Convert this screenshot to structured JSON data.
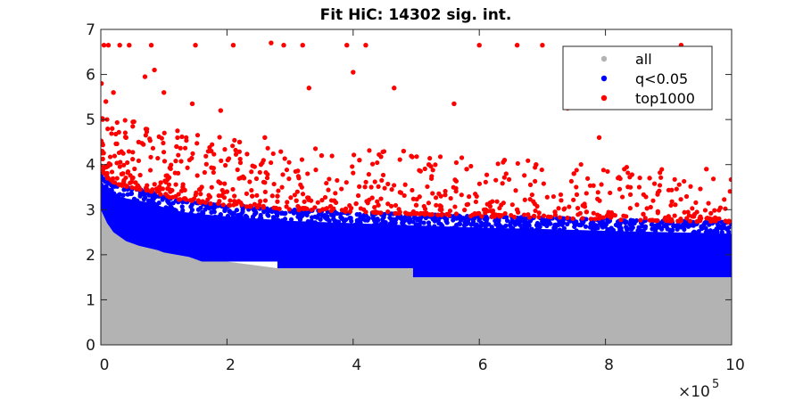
{
  "chart_data": {
    "type": "scatter",
    "title": "Fit HiC: 14302 sig. int.",
    "xlabel": "",
    "ylabel": "",
    "xlim": [
      0,
      1000000
    ],
    "ylim": [
      0,
      7
    ],
    "x_ticks": [
      0,
      200000,
      400000,
      600000,
      800000,
      1000000
    ],
    "x_tick_labels": [
      "0",
      "2",
      "4",
      "6",
      "8",
      "10"
    ],
    "x_exponent_label": "×10",
    "x_exponent_power": "5",
    "y_ticks": [
      0,
      1,
      2,
      3,
      4,
      5,
      6,
      7
    ],
    "y_tick_labels": [
      "0",
      "1",
      "2",
      "3",
      "4",
      "5",
      "6",
      "7"
    ],
    "grid": false,
    "legend_position": "top-right",
    "series": [
      {
        "name": "all",
        "color": "#b3b3b3",
        "description_points": "dense, fills the region below the significance threshold",
        "x": [
          0,
          10000,
          20000,
          40000,
          60000,
          90000,
          100000,
          140000,
          160000,
          200000,
          280000,
          300000,
          400000,
          495000,
          500000,
          600000,
          700000,
          800000,
          900000,
          1000000
        ],
        "y": [
          3.0,
          2.7,
          2.5,
          2.3,
          2.2,
          2.1,
          2.05,
          1.95,
          1.85,
          1.85,
          1.7,
          1.7,
          1.7,
          1.7,
          1.5,
          1.5,
          1.5,
          1.5,
          1.5,
          1.5
        ]
      },
      {
        "name": "q<0.05",
        "color": "#0000ff",
        "upper": [
          [
            0,
            3.9
          ],
          [
            10000,
            3.7
          ],
          [
            20000,
            3.6
          ],
          [
            40000,
            3.5
          ],
          [
            60000,
            3.45
          ],
          [
            80000,
            3.4
          ],
          [
            100000,
            3.3
          ],
          [
            130000,
            3.2
          ],
          [
            160000,
            3.15
          ],
          [
            200000,
            3.1
          ],
          [
            250000,
            3.05
          ],
          [
            300000,
            3.0
          ],
          [
            400000,
            2.95
          ],
          [
            500000,
            2.9
          ],
          [
            600000,
            2.85
          ],
          [
            700000,
            2.82
          ],
          [
            800000,
            2.78
          ],
          [
            900000,
            2.75
          ],
          [
            1000000,
            2.72
          ]
        ],
        "lower": [
          [
            0,
            3.0
          ],
          [
            10000,
            2.7
          ],
          [
            20000,
            2.5
          ],
          [
            40000,
            2.3
          ],
          [
            60000,
            2.2
          ],
          [
            90000,
            2.1
          ],
          [
            100000,
            2.05
          ],
          [
            140000,
            1.95
          ],
          [
            160000,
            1.85
          ],
          [
            280000,
            1.85
          ],
          [
            280001,
            1.7
          ],
          [
            495000,
            1.7
          ],
          [
            495001,
            1.5
          ],
          [
            1000000,
            1.5
          ]
        ]
      },
      {
        "name": "top1000",
        "color": "#ff0000",
        "x": [
          5000,
          12000,
          30000,
          45000,
          80000,
          150000,
          210000,
          270000,
          290000,
          320000,
          390000,
          420000,
          600000,
          660000,
          700000,
          920000,
          1000,
          8000,
          20000,
          70000,
          85000,
          100000,
          145000,
          190000,
          330000,
          400000,
          465000,
          560000,
          740000,
          880000,
          3000,
          18000,
          40000,
          60000,
          120000,
          175000,
          220000,
          260000,
          350000,
          410000,
          480000,
          520000,
          580000,
          640000,
          690000,
          750000,
          790000,
          830000,
          870000,
          960000,
          2000,
          15000,
          35000,
          55000,
          95000,
          130000,
          160000,
          200000,
          240000,
          280000,
          310000,
          370000,
          440000,
          500000,
          540000,
          610000,
          660000,
          720000,
          770000,
          810000,
          860000,
          900000,
          940000,
          980000
        ],
        "y": [
          6.65,
          6.65,
          6.65,
          6.65,
          6.65,
          6.65,
          6.65,
          6.7,
          6.65,
          6.65,
          6.65,
          6.65,
          6.65,
          6.65,
          6.65,
          6.65,
          5.8,
          5.4,
          5.6,
          5.95,
          6.1,
          5.6,
          5.35,
          5.2,
          5.7,
          6.05,
          5.7,
          5.35,
          5.25,
          5.3,
          5.0,
          4.8,
          4.6,
          4.5,
          4.4,
          4.3,
          4.5,
          4.6,
          4.2,
          4.1,
          4.3,
          4.0,
          3.9,
          4.1,
          4.0,
          3.8,
          4.6,
          3.9,
          3.7,
          3.9,
          4.3,
          4.0,
          3.8,
          3.6,
          3.6,
          3.5,
          3.5,
          3.4,
          3.3,
          3.3,
          3.2,
          3.2,
          3.1,
          3.1,
          3.0,
          3.0,
          3.0,
          2.95,
          2.95,
          2.9,
          2.9,
          2.85,
          2.85,
          2.8
        ]
      }
    ]
  }
}
